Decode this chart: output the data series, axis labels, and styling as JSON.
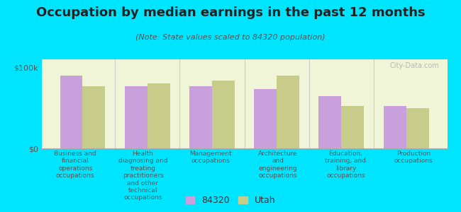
{
  "title": "Occupation by median earnings in the past 12 months",
  "subtitle": "(Note: State values scaled to 84320 population)",
  "categories": [
    "Business and\nfinancial\noperations\noccupations",
    "Health\ndiagnosing and\ntreating\npractitioners\nand other\ntechnical\noccupations",
    "Management\noccupations",
    "Architecture\nand\nengineering\noccupations",
    "Education,\ntraining, and\nlibrary\noccupations",
    "Production\noccupations"
  ],
  "values_84320": [
    90000,
    77000,
    77000,
    73000,
    65000,
    52000
  ],
  "values_utah": [
    77000,
    80000,
    84000,
    90000,
    52000,
    50000
  ],
  "color_84320": "#c9a0dc",
  "color_utah": "#c8cc8a",
  "background_plot": "#f0f5d8",
  "background_fig": "#00e5ff",
  "ylim": [
    0,
    110000
  ],
  "ytick_labels": [
    "$0",
    "$100k"
  ],
  "legend_label_84320": "84320",
  "legend_label_utah": "Utah",
  "watermark": "City-Data.com",
  "bar_width": 0.35,
  "title_fontsize": 13,
  "subtitle_fontsize": 8,
  "xlabel_fontsize": 7,
  "ylabel_fontsize": 8
}
